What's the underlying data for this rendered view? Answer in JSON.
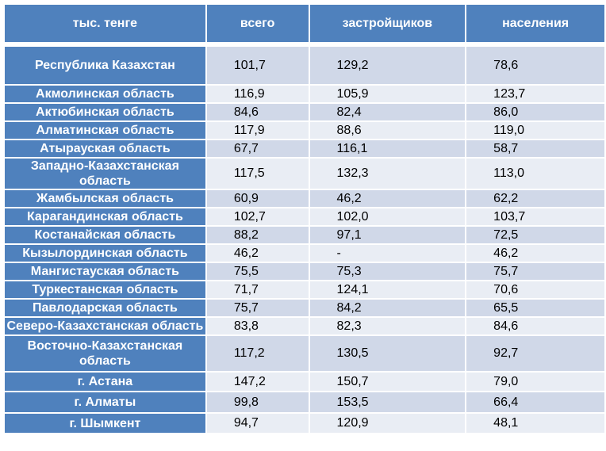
{
  "table": {
    "headers": [
      "тыс. тенге",
      "всего",
      "застройщиков",
      "населения"
    ],
    "rows": [
      {
        "region": "Республика Казахстан",
        "total": "101,7",
        "developers": "129,2",
        "population": "78,6"
      },
      {
        "region": "Акмолинская область",
        "total": "116,9",
        "developers": "105,9",
        "population": "123,7"
      },
      {
        "region": "Актюбинская область",
        "total": "84,6",
        "developers": "82,4",
        "population": "86,0"
      },
      {
        "region": "Алматинская область",
        "total": "117,9",
        "developers": "88,6",
        "population": "119,0"
      },
      {
        "region": "Атырауская область",
        "total": "67,7",
        "developers": "116,1",
        "population": "58,7"
      },
      {
        "region": "Западно-Казахстанская  область",
        "total": "117,5",
        "developers": "132,3",
        "population": "113,0"
      },
      {
        "region": "Жамбылская область",
        "total": "60,9",
        "developers": "46,2",
        "population": "62,2"
      },
      {
        "region": "Карагандинская область",
        "total": "102,7",
        "developers": "102,0",
        "population": "103,7"
      },
      {
        "region": "Костанайская область",
        "total": "88,2",
        "developers": "97,1",
        "population": "72,5"
      },
      {
        "region": "Кызылординская область",
        "total": "46,2",
        "developers": "-",
        "population": "46,2"
      },
      {
        "region": "Мангистауская  область",
        "total": "75,5",
        "developers": "75,3",
        "population": "75,7"
      },
      {
        "region": "Туркестанская  область",
        "total": "71,7",
        "developers": "124,1",
        "population": "70,6"
      },
      {
        "region": "Павлодарская область",
        "total": "75,7",
        "developers": "84,2",
        "population": "65,5"
      },
      {
        "region": "Северо-Казахстанская  область",
        "total": "83,8",
        "developers": "82,3",
        "population": "84,6"
      },
      {
        "region": "Восточно-Казахстанская область",
        "total": "117,2",
        "developers": "130,5",
        "population": "92,7"
      },
      {
        "region": "г. Астана",
        "total": "147,2",
        "developers": "150,7",
        "population": "79,0"
      },
      {
        "region": "г. Алматы",
        "total": "99,8",
        "developers": "153,5",
        "population": "66,4"
      },
      {
        "region": "г. Шымкент",
        "total": "94,7",
        "developers": "120,9",
        "population": "48,1"
      }
    ]
  },
  "colors": {
    "header_bg": "#4f81bd",
    "row_light": "#e9edf4",
    "row_dark": "#d0d8e8",
    "header_text": "#ffffff"
  }
}
